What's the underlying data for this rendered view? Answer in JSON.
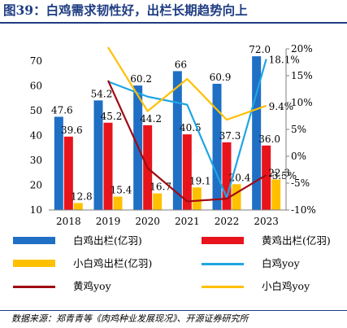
{
  "title": "图39：白鸡需求韧性好，出栏长期趋势向上",
  "source": "数据来源：郑青青等《肉鸡种业发展现况》、开源证券研究所",
  "chart_data": {
    "type": "bar",
    "categories": [
      "2018",
      "2019",
      "2020",
      "2021",
      "2022",
      "2023"
    ],
    "left_axis": {
      "ticks": [
        "10",
        "20",
        "30",
        "40",
        "50",
        "60",
        "70"
      ],
      "ylim": [
        10,
        75
      ]
    },
    "right_axis": {
      "ticks": [
        "-10%",
        "-5%",
        "0%",
        "5%",
        "10%",
        "15%",
        "20%"
      ],
      "ylim": [
        -10,
        20
      ]
    },
    "bar_series": [
      {
        "name": "白鸡出栏(亿羽)",
        "color": "#1f6fc5",
        "values": [
          47.6,
          54.2,
          60.2,
          66.0,
          60.9,
          72.0
        ],
        "labels": [
          "47.6",
          "54.2",
          "60.2",
          "66",
          "60.9",
          "72.0"
        ]
      },
      {
        "name": "黄鸡出栏(亿羽)",
        "color": "#e8141c",
        "values": [
          39.6,
          45.2,
          44.2,
          40.5,
          37.3,
          36.0
        ],
        "labels": [
          "39.6",
          "45.2",
          "44.2",
          "40.5",
          "37.3",
          "36.0"
        ]
      },
      {
        "name": "小白鸡出栏(亿羽)",
        "color": "#ffc000",
        "values": [
          12.8,
          15.4,
          16.7,
          19.1,
          20.4,
          22.3
        ],
        "labels": [
          "12.8",
          "15.4",
          "16.7",
          "19.1",
          "20.4",
          "22.3"
        ]
      }
    ],
    "line_series": [
      {
        "name": "白鸡yoy",
        "color": "#1fa5e3",
        "values": [
          null,
          13.9,
          11.1,
          9.6,
          -7.7,
          18.1
        ],
        "end_label": "18.1%"
      },
      {
        "name": "黄鸡yoy",
        "color": "#a10a12",
        "values": [
          null,
          14.1,
          -2.2,
          -8.4,
          -7.9,
          -3.5
        ],
        "end_label": "-3.5%"
      },
      {
        "name": "小白鸡yoy",
        "color": "#ffc000",
        "values": [
          null,
          20.3,
          8.4,
          14.4,
          6.8,
          9.4
        ],
        "end_label": "9.4%"
      }
    ]
  },
  "legend": [
    {
      "label": "白鸡出栏(亿羽)",
      "kind": "bar",
      "color": "#1f6fc5"
    },
    {
      "label": "黄鸡出栏(亿羽)",
      "kind": "bar",
      "color": "#e8141c"
    },
    {
      "label": "小白鸡出栏(亿羽)",
      "kind": "bar",
      "color": "#ffc000"
    },
    {
      "label": "白鸡yoy",
      "kind": "line",
      "color": "#1fa5e3"
    },
    {
      "label": "黄鸡yoy",
      "kind": "line",
      "color": "#a10a12"
    },
    {
      "label": "小白鸡yoy",
      "kind": "line",
      "color": "#ffc000"
    }
  ]
}
